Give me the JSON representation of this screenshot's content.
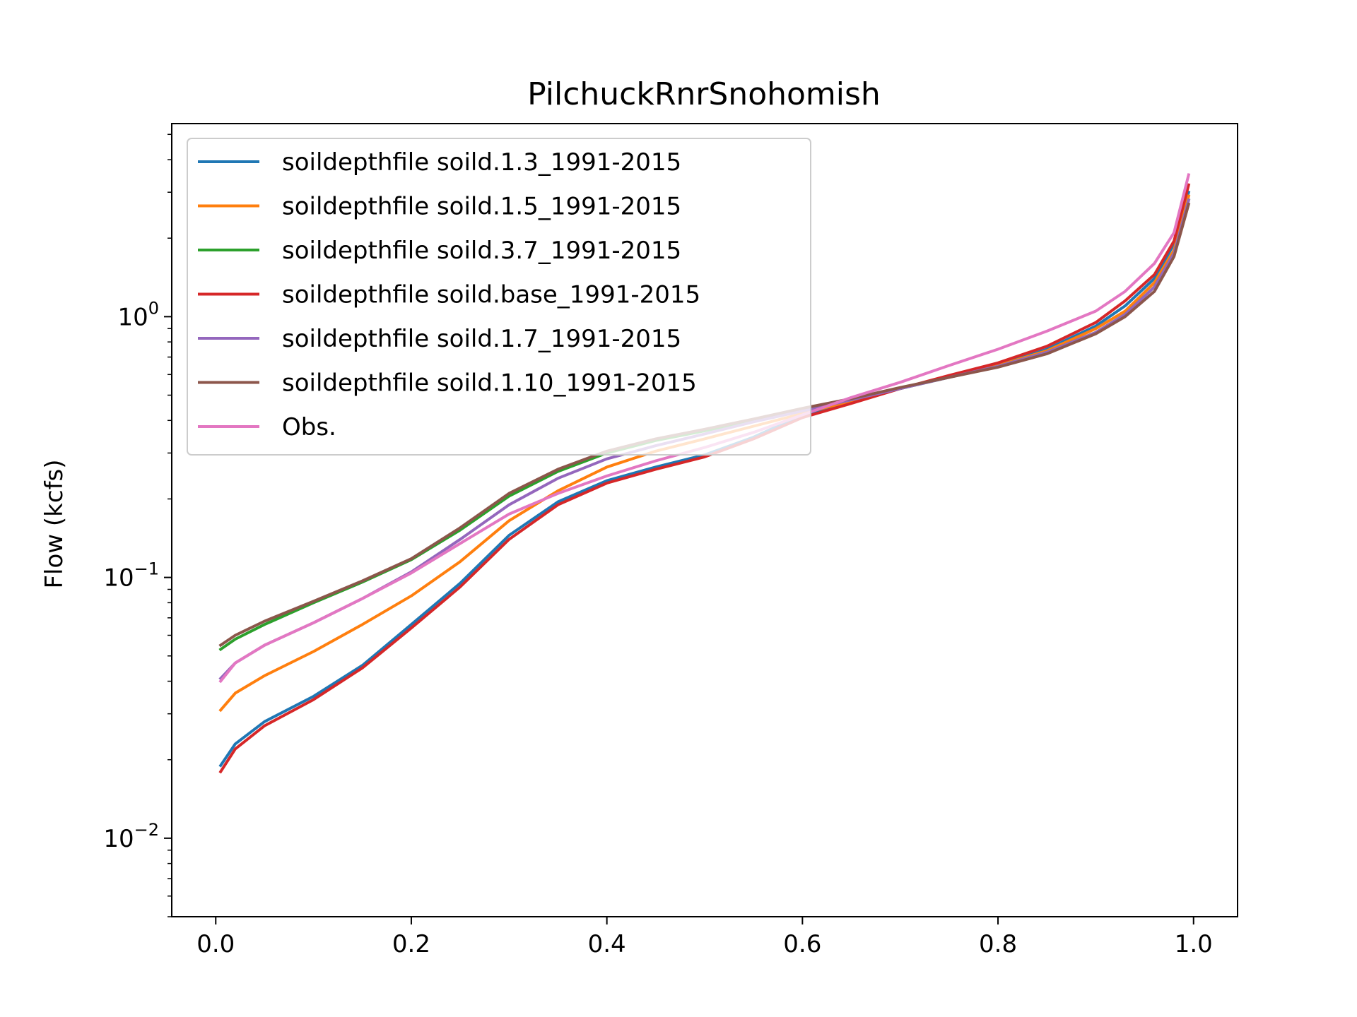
{
  "chart_data": {
    "type": "line",
    "title": "PilchuckRnrSnohomish",
    "xlabel": "",
    "ylabel": "Flow (kcfs)",
    "xlim": [
      -0.045,
      1.045
    ],
    "ylim": [
      0.005,
      5.5
    ],
    "yscale": "log",
    "x_ticks": [
      0.0,
      0.2,
      0.4,
      0.6,
      0.8,
      1.0
    ],
    "x_tick_labels": [
      "0.0",
      "0.2",
      "0.4",
      "0.6",
      "0.8",
      "1.0"
    ],
    "y_ticks": [
      {
        "value": 0.01,
        "base": "10",
        "exp": "−2"
      },
      {
        "value": 0.1,
        "base": "10",
        "exp": "−1"
      },
      {
        "value": 1,
        "base": "10",
        "exp": "0"
      }
    ],
    "legend_position": "upper-left",
    "grid": false,
    "series": [
      {
        "name": "soildepthfile soild.1.3_1991-2015",
        "color": "#1f77b4",
        "points": [
          [
            0.005,
            0.019
          ],
          [
            0.02,
            0.023
          ],
          [
            0.05,
            0.028
          ],
          [
            0.1,
            0.035
          ],
          [
            0.15,
            0.046
          ],
          [
            0.2,
            0.066
          ],
          [
            0.25,
            0.095
          ],
          [
            0.3,
            0.145
          ],
          [
            0.35,
            0.195
          ],
          [
            0.4,
            0.235
          ],
          [
            0.45,
            0.265
          ],
          [
            0.5,
            0.295
          ],
          [
            0.55,
            0.345
          ],
          [
            0.6,
            0.42
          ],
          [
            0.65,
            0.47
          ],
          [
            0.7,
            0.53
          ],
          [
            0.75,
            0.59
          ],
          [
            0.8,
            0.65
          ],
          [
            0.85,
            0.75
          ],
          [
            0.9,
            0.92
          ],
          [
            0.93,
            1.1
          ],
          [
            0.96,
            1.4
          ],
          [
            0.98,
            1.9
          ],
          [
            0.995,
            3.0
          ]
        ]
      },
      {
        "name": "soildepthfile soild.1.5_1991-2015",
        "color": "#ff7f0e",
        "points": [
          [
            0.005,
            0.031
          ],
          [
            0.02,
            0.036
          ],
          [
            0.05,
            0.042
          ],
          [
            0.1,
            0.052
          ],
          [
            0.15,
            0.066
          ],
          [
            0.2,
            0.085
          ],
          [
            0.25,
            0.115
          ],
          [
            0.3,
            0.165
          ],
          [
            0.35,
            0.215
          ],
          [
            0.4,
            0.265
          ],
          [
            0.45,
            0.305
          ],
          [
            0.5,
            0.34
          ],
          [
            0.55,
            0.38
          ],
          [
            0.6,
            0.425
          ],
          [
            0.65,
            0.475
          ],
          [
            0.7,
            0.53
          ],
          [
            0.75,
            0.59
          ],
          [
            0.8,
            0.65
          ],
          [
            0.85,
            0.74
          ],
          [
            0.9,
            0.9
          ],
          [
            0.93,
            1.05
          ],
          [
            0.96,
            1.35
          ],
          [
            0.98,
            1.8
          ],
          [
            0.995,
            2.9
          ]
        ]
      },
      {
        "name": "soildepthfile soild.3.7_1991-2015",
        "color": "#2ca02c",
        "points": [
          [
            0.005,
            0.053
          ],
          [
            0.02,
            0.058
          ],
          [
            0.05,
            0.066
          ],
          [
            0.1,
            0.08
          ],
          [
            0.15,
            0.096
          ],
          [
            0.2,
            0.117
          ],
          [
            0.25,
            0.152
          ],
          [
            0.3,
            0.205
          ],
          [
            0.35,
            0.255
          ],
          [
            0.4,
            0.3
          ],
          [
            0.45,
            0.335
          ],
          [
            0.5,
            0.365
          ],
          [
            0.55,
            0.4
          ],
          [
            0.6,
            0.44
          ],
          [
            0.65,
            0.48
          ],
          [
            0.7,
            0.53
          ],
          [
            0.75,
            0.585
          ],
          [
            0.8,
            0.645
          ],
          [
            0.85,
            0.73
          ],
          [
            0.9,
            0.87
          ],
          [
            0.93,
            1.02
          ],
          [
            0.96,
            1.3
          ],
          [
            0.98,
            1.75
          ],
          [
            0.995,
            2.8
          ]
        ]
      },
      {
        "name": "soildepthfile soild.base_1991-2015",
        "color": "#d62728",
        "points": [
          [
            0.005,
            0.018
          ],
          [
            0.02,
            0.022
          ],
          [
            0.05,
            0.027
          ],
          [
            0.1,
            0.034
          ],
          [
            0.15,
            0.045
          ],
          [
            0.2,
            0.064
          ],
          [
            0.25,
            0.092
          ],
          [
            0.3,
            0.14
          ],
          [
            0.35,
            0.19
          ],
          [
            0.4,
            0.23
          ],
          [
            0.45,
            0.26
          ],
          [
            0.5,
            0.29
          ],
          [
            0.55,
            0.34
          ],
          [
            0.6,
            0.41
          ],
          [
            0.65,
            0.465
          ],
          [
            0.7,
            0.53
          ],
          [
            0.75,
            0.595
          ],
          [
            0.8,
            0.665
          ],
          [
            0.85,
            0.77
          ],
          [
            0.9,
            0.95
          ],
          [
            0.93,
            1.15
          ],
          [
            0.96,
            1.45
          ],
          [
            0.98,
            1.95
          ],
          [
            0.995,
            3.2
          ]
        ]
      },
      {
        "name": "soildepthfile soild.1.7_1991-2015",
        "color": "#9467bd",
        "points": [
          [
            0.005,
            0.041
          ],
          [
            0.02,
            0.047
          ],
          [
            0.05,
            0.055
          ],
          [
            0.1,
            0.067
          ],
          [
            0.15,
            0.083
          ],
          [
            0.2,
            0.105
          ],
          [
            0.25,
            0.14
          ],
          [
            0.3,
            0.19
          ],
          [
            0.35,
            0.24
          ],
          [
            0.4,
            0.285
          ],
          [
            0.45,
            0.32
          ],
          [
            0.5,
            0.355
          ],
          [
            0.55,
            0.395
          ],
          [
            0.6,
            0.435
          ],
          [
            0.65,
            0.48
          ],
          [
            0.7,
            0.53
          ],
          [
            0.75,
            0.585
          ],
          [
            0.8,
            0.645
          ],
          [
            0.85,
            0.73
          ],
          [
            0.9,
            0.87
          ],
          [
            0.93,
            1.02
          ],
          [
            0.96,
            1.3
          ],
          [
            0.98,
            1.75
          ],
          [
            0.995,
            2.8
          ]
        ]
      },
      {
        "name": "soildepthfile soild.1.10_1991-2015",
        "color": "#8c564b",
        "points": [
          [
            0.005,
            0.055
          ],
          [
            0.02,
            0.06
          ],
          [
            0.05,
            0.068
          ],
          [
            0.1,
            0.081
          ],
          [
            0.15,
            0.097
          ],
          [
            0.2,
            0.118
          ],
          [
            0.25,
            0.155
          ],
          [
            0.3,
            0.21
          ],
          [
            0.35,
            0.26
          ],
          [
            0.4,
            0.305
          ],
          [
            0.45,
            0.34
          ],
          [
            0.5,
            0.37
          ],
          [
            0.55,
            0.405
          ],
          [
            0.6,
            0.445
          ],
          [
            0.65,
            0.485
          ],
          [
            0.7,
            0.535
          ],
          [
            0.75,
            0.585
          ],
          [
            0.8,
            0.64
          ],
          [
            0.85,
            0.72
          ],
          [
            0.9,
            0.86
          ],
          [
            0.93,
            1.0
          ],
          [
            0.96,
            1.25
          ],
          [
            0.98,
            1.7
          ],
          [
            0.995,
            2.7
          ]
        ]
      },
      {
        "name": "Obs.",
        "color": "#e377c2",
        "points": [
          [
            0.005,
            0.04
          ],
          [
            0.02,
            0.047
          ],
          [
            0.05,
            0.055
          ],
          [
            0.1,
            0.067
          ],
          [
            0.15,
            0.083
          ],
          [
            0.2,
            0.104
          ],
          [
            0.25,
            0.135
          ],
          [
            0.3,
            0.175
          ],
          [
            0.35,
            0.21
          ],
          [
            0.4,
            0.245
          ],
          [
            0.45,
            0.28
          ],
          [
            0.5,
            0.315
          ],
          [
            0.55,
            0.36
          ],
          [
            0.6,
            0.42
          ],
          [
            0.65,
            0.49
          ],
          [
            0.7,
            0.56
          ],
          [
            0.75,
            0.65
          ],
          [
            0.8,
            0.75
          ],
          [
            0.85,
            0.88
          ],
          [
            0.9,
            1.05
          ],
          [
            0.93,
            1.25
          ],
          [
            0.96,
            1.6
          ],
          [
            0.98,
            2.1
          ],
          [
            0.995,
            3.5
          ]
        ]
      }
    ]
  }
}
